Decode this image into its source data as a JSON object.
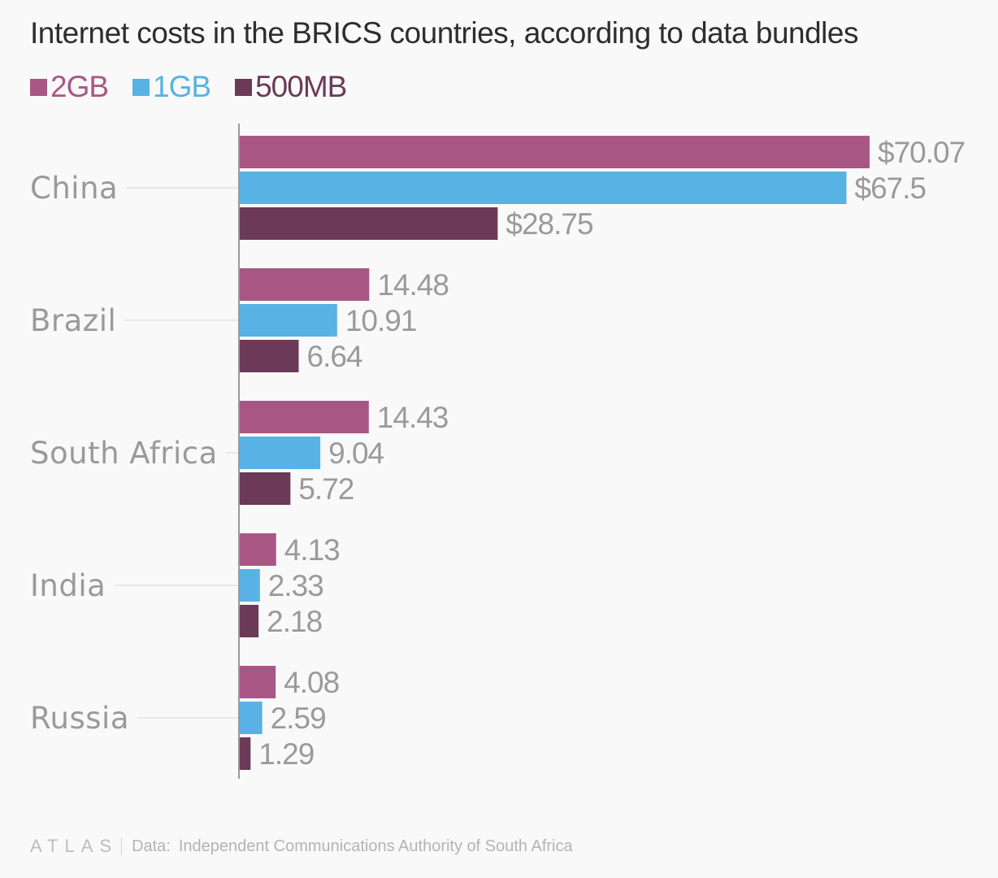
{
  "chart_data": {
    "type": "bar",
    "orientation": "horizontal",
    "title": "Internet costs in the BRICS countries, according to data bundles",
    "categories": [
      "China",
      "Brazil",
      "South Africa",
      "India",
      "Russia"
    ],
    "series": [
      {
        "name": "2GB",
        "color": "#a85784",
        "values": [
          70.07,
          14.48,
          14.43,
          4.13,
          4.08
        ],
        "labels": [
          "$70.07",
          "14.48",
          "14.43",
          "4.13",
          "4.08"
        ]
      },
      {
        "name": "1GB",
        "color": "#58b2e3",
        "values": [
          67.5,
          10.91,
          9.04,
          2.33,
          2.59
        ],
        "labels": [
          "$67.5",
          "10.91",
          "9.04",
          "2.33",
          "2.59"
        ]
      },
      {
        "name": "500MB",
        "color": "#6b3a58",
        "values": [
          28.75,
          6.64,
          5.72,
          2.18,
          1.29
        ],
        "labels": [
          "$28.75",
          "6.64",
          "5.72",
          "2.18",
          "1.29"
        ]
      }
    ],
    "xlabel": "",
    "ylabel": "",
    "xlim": [
      0,
      70.07
    ],
    "grid": false,
    "legend_position": "top-left"
  },
  "footer": {
    "brand": "ATLAS",
    "source_prefix": "Data:",
    "source": "Independent Communications Authority of South Africa"
  }
}
